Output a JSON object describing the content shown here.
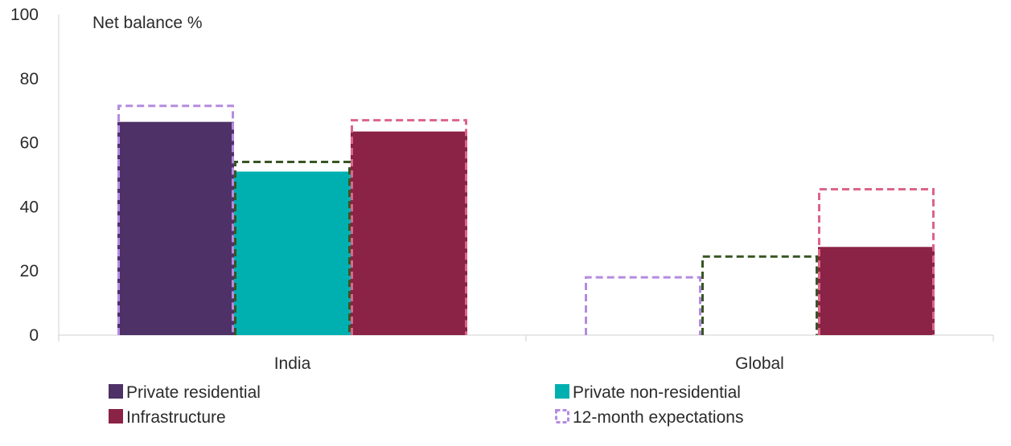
{
  "chart_data": {
    "type": "bar",
    "unit_label": "Net balance %",
    "categories": [
      "India",
      "Global"
    ],
    "ylim": [
      0,
      100
    ],
    "y_ticks": [
      "0",
      "20",
      "40",
      "60",
      "80",
      "100"
    ],
    "grid": false,
    "legend_position": "bottom",
    "series": [
      {
        "name": "Private residential",
        "color": "#4d3167",
        "values": [
          66.5,
          0
        ],
        "expectations": [
          71.5,
          18
        ]
      },
      {
        "name": "Private non-residential",
        "color": "#00b0b0",
        "values": [
          51,
          0
        ],
        "expectations": [
          54,
          24.5
        ]
      },
      {
        "name": "Infrastructure",
        "color": "#8a2345",
        "values": [
          63.5,
          27.5
        ],
        "expectations": [
          67,
          45.5
        ]
      }
    ],
    "expectation_colors": [
      "#b48be0",
      "#375623",
      "#dc6489"
    ],
    "legend": [
      {
        "label": "Private residential",
        "color": "#4d3167",
        "style": "solid"
      },
      {
        "label": "Private non-residential",
        "color": "#00b0b0",
        "style": "solid"
      },
      {
        "label": "Infrastructure",
        "color": "#8a2345",
        "style": "solid"
      },
      {
        "label": "12-month expectations",
        "color": "#b48be0",
        "style": "dashed"
      }
    ]
  }
}
